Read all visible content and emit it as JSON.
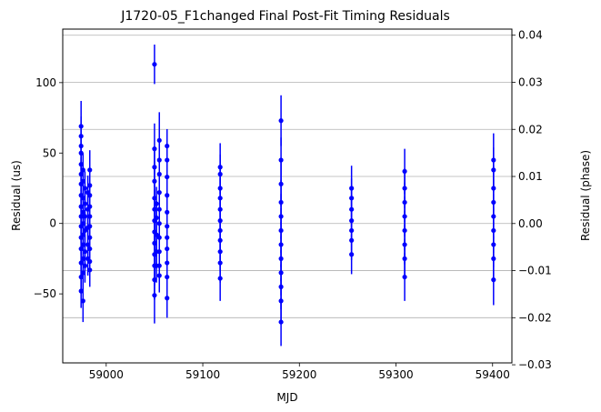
{
  "chart_data": {
    "type": "scatter",
    "title": "J1720-05_F1changed Final Post-Fit Timing Residuals",
    "xlabel": "MJD",
    "ylabel": "Residual (us)",
    "ylabel_right": "Residual (phase)",
    "xlim": [
      58955,
      59420
    ],
    "ylim": [
      -99,
      138
    ],
    "ylim_right": [
      -0.0296,
      0.0413
    ],
    "x_ticks": [
      59000,
      59100,
      59200,
      59300,
      59400
    ],
    "y_ticks": [
      -50,
      0,
      50,
      100
    ],
    "y_ticks_right": [
      -0.03,
      -0.02,
      -0.01,
      0.0,
      0.01,
      0.02,
      0.03,
      0.04
    ],
    "x_tick_labels": [
      "59000",
      "59100",
      "59200",
      "59300",
      "59400"
    ],
    "y_tick_labels": [
      "−50",
      "0",
      "50",
      "100"
    ],
    "y_tick_labels_right": [
      "−0.03",
      "−0.02",
      "−0.01",
      "0.00",
      "0.01",
      "0.02",
      "0.03",
      "0.04"
    ],
    "grid": "horizontal lines at right-axis ticks",
    "legend": "none",
    "marker_color": "#0000ff",
    "grid_color": "#b0b0b0",
    "series": [
      {
        "points": [
          {
            "x": 58974,
            "y": 69,
            "err": 18
          },
          {
            "x": 58974,
            "y": 62,
            "err": 14
          },
          {
            "x": 58974,
            "y": 55,
            "err": 12
          },
          {
            "x": 58974,
            "y": 50,
            "err": 12
          },
          {
            "x": 58974,
            "y": 42,
            "err": 12
          },
          {
            "x": 58974,
            "y": 35,
            "err": 12
          },
          {
            "x": 58974,
            "y": 28,
            "err": 12
          },
          {
            "x": 58974,
            "y": 20,
            "err": 12
          },
          {
            "x": 58974,
            "y": 12,
            "err": 12
          },
          {
            "x": 58974,
            "y": 5,
            "err": 12
          },
          {
            "x": 58974,
            "y": -2,
            "err": 12
          },
          {
            "x": 58974,
            "y": -10,
            "err": 12
          },
          {
            "x": 58974,
            "y": -18,
            "err": 12
          },
          {
            "x": 58974,
            "y": -28,
            "err": 12
          },
          {
            "x": 58974,
            "y": -38,
            "err": 12
          },
          {
            "x": 58974,
            "y": -48,
            "err": 12
          },
          {
            "x": 58976,
            "y": 38,
            "err": 12
          },
          {
            "x": 58976,
            "y": 30,
            "err": 12
          },
          {
            "x": 58976,
            "y": 18,
            "err": 12
          },
          {
            "x": 58976,
            "y": 8,
            "err": 12
          },
          {
            "x": 58976,
            "y": 0,
            "err": 12
          },
          {
            "x": 58976,
            "y": -8,
            "err": 12
          },
          {
            "x": 58976,
            "y": -15,
            "err": 12
          },
          {
            "x": 58976,
            "y": -25,
            "err": 12
          },
          {
            "x": 58976,
            "y": -35,
            "err": 12
          },
          {
            "x": 58976,
            "y": -55,
            "err": 15
          },
          {
            "x": 58978,
            "y": 25,
            "err": 12
          },
          {
            "x": 58978,
            "y": 14,
            "err": 12
          },
          {
            "x": 58978,
            "y": 5,
            "err": 12
          },
          {
            "x": 58978,
            "y": -5,
            "err": 12
          },
          {
            "x": 58978,
            "y": -20,
            "err": 12
          },
          {
            "x": 58978,
            "y": -30,
            "err": 12
          },
          {
            "x": 58981,
            "y": 22,
            "err": 12
          },
          {
            "x": 58981,
            "y": 10,
            "err": 12
          },
          {
            "x": 58981,
            "y": -3,
            "err": 12
          },
          {
            "x": 58981,
            "y": -15,
            "err": 12
          },
          {
            "x": 58981,
            "y": -25,
            "err": 12
          },
          {
            "x": 58983,
            "y": 38,
            "err": 14
          },
          {
            "x": 58983,
            "y": 27,
            "err": 12
          },
          {
            "x": 58983,
            "y": 20,
            "err": 12
          },
          {
            "x": 58983,
            "y": 12,
            "err": 12
          },
          {
            "x": 58983,
            "y": 5,
            "err": 12
          },
          {
            "x": 58983,
            "y": -2,
            "err": 12
          },
          {
            "x": 58983,
            "y": -10,
            "err": 12
          },
          {
            "x": 58983,
            "y": -18,
            "err": 12
          },
          {
            "x": 58983,
            "y": -27,
            "err": 12
          },
          {
            "x": 58983,
            "y": -33,
            "err": 12
          },
          {
            "x": 59050,
            "y": 113,
            "err": 14
          },
          {
            "x": 59050,
            "y": 53,
            "err": 18
          },
          {
            "x": 59050,
            "y": 40,
            "err": 14
          },
          {
            "x": 59050,
            "y": 30,
            "err": 14
          },
          {
            "x": 59050,
            "y": 18,
            "err": 14
          },
          {
            "x": 59050,
            "y": 10,
            "err": 14
          },
          {
            "x": 59050,
            "y": 2,
            "err": 14
          },
          {
            "x": 59050,
            "y": -6,
            "err": 14
          },
          {
            "x": 59050,
            "y": -14,
            "err": 14
          },
          {
            "x": 59050,
            "y": -22,
            "err": 14
          },
          {
            "x": 59050,
            "y": -30,
            "err": 14
          },
          {
            "x": 59050,
            "y": -40,
            "err": 14
          },
          {
            "x": 59050,
            "y": -51,
            "err": 20
          },
          {
            "x": 59052,
            "y": 14,
            "err": 12
          },
          {
            "x": 59052,
            "y": 4,
            "err": 12
          },
          {
            "x": 59052,
            "y": -8,
            "err": 12
          },
          {
            "x": 59052,
            "y": -20,
            "err": 12
          },
          {
            "x": 59052,
            "y": -30,
            "err": 12
          },
          {
            "x": 59055,
            "y": 59,
            "err": 20
          },
          {
            "x": 59055,
            "y": 45,
            "err": 14
          },
          {
            "x": 59055,
            "y": 35,
            "err": 12
          },
          {
            "x": 59055,
            "y": 22,
            "err": 12
          },
          {
            "x": 59055,
            "y": 10,
            "err": 12
          },
          {
            "x": 59055,
            "y": 0,
            "err": 12
          },
          {
            "x": 59055,
            "y": -10,
            "err": 12
          },
          {
            "x": 59055,
            "y": -20,
            "err": 12
          },
          {
            "x": 59055,
            "y": -30,
            "err": 12
          },
          {
            "x": 59055,
            "y": -37,
            "err": 12
          },
          {
            "x": 59063,
            "y": 55,
            "err": 12
          },
          {
            "x": 59063,
            "y": 45,
            "err": 12
          },
          {
            "x": 59063,
            "y": 33,
            "err": 12
          },
          {
            "x": 59063,
            "y": 20,
            "err": 12
          },
          {
            "x": 59063,
            "y": 8,
            "err": 12
          },
          {
            "x": 59063,
            "y": -2,
            "err": 12
          },
          {
            "x": 59063,
            "y": -10,
            "err": 12
          },
          {
            "x": 59063,
            "y": -18,
            "err": 12
          },
          {
            "x": 59063,
            "y": -28,
            "err": 12
          },
          {
            "x": 59063,
            "y": -38,
            "err": 12
          },
          {
            "x": 59063,
            "y": -53,
            "err": 14
          },
          {
            "x": 59118,
            "y": 40,
            "err": 17
          },
          {
            "x": 59118,
            "y": 35,
            "err": 14
          },
          {
            "x": 59118,
            "y": 25,
            "err": 14
          },
          {
            "x": 59118,
            "y": 18,
            "err": 14
          },
          {
            "x": 59118,
            "y": 10,
            "err": 14
          },
          {
            "x": 59118,
            "y": 2,
            "err": 14
          },
          {
            "x": 59118,
            "y": -5,
            "err": 14
          },
          {
            "x": 59118,
            "y": -12,
            "err": 14
          },
          {
            "x": 59118,
            "y": -20,
            "err": 14
          },
          {
            "x": 59118,
            "y": -28,
            "err": 14
          },
          {
            "x": 59118,
            "y": -39,
            "err": 16
          },
          {
            "x": 59181,
            "y": 73,
            "err": 18
          },
          {
            "x": 59181,
            "y": 45,
            "err": 16
          },
          {
            "x": 59181,
            "y": 28,
            "err": 16
          },
          {
            "x": 59181,
            "y": 15,
            "err": 16
          },
          {
            "x": 59181,
            "y": 5,
            "err": 16
          },
          {
            "x": 59181,
            "y": -5,
            "err": 16
          },
          {
            "x": 59181,
            "y": -15,
            "err": 16
          },
          {
            "x": 59181,
            "y": -25,
            "err": 16
          },
          {
            "x": 59181,
            "y": -35,
            "err": 16
          },
          {
            "x": 59181,
            "y": -45,
            "err": 16
          },
          {
            "x": 59181,
            "y": -55,
            "err": 16
          },
          {
            "x": 59181,
            "y": -70,
            "err": 17
          },
          {
            "x": 59254,
            "y": 25,
            "err": 16
          },
          {
            "x": 59254,
            "y": 18,
            "err": 14
          },
          {
            "x": 59254,
            "y": 10,
            "err": 14
          },
          {
            "x": 59254,
            "y": 2,
            "err": 14
          },
          {
            "x": 59254,
            "y": -5,
            "err": 14
          },
          {
            "x": 59254,
            "y": -12,
            "err": 14
          },
          {
            "x": 59254,
            "y": -22,
            "err": 14
          },
          {
            "x": 59309,
            "y": 37,
            "err": 16
          },
          {
            "x": 59309,
            "y": 25,
            "err": 14
          },
          {
            "x": 59309,
            "y": 15,
            "err": 14
          },
          {
            "x": 59309,
            "y": 5,
            "err": 14
          },
          {
            "x": 59309,
            "y": -5,
            "err": 14
          },
          {
            "x": 59309,
            "y": -15,
            "err": 14
          },
          {
            "x": 59309,
            "y": -25,
            "err": 14
          },
          {
            "x": 59309,
            "y": -38,
            "err": 17
          },
          {
            "x": 59401,
            "y": 45,
            "err": 19
          },
          {
            "x": 59401,
            "y": 38,
            "err": 16
          },
          {
            "x": 59401,
            "y": 25,
            "err": 16
          },
          {
            "x": 59401,
            "y": 15,
            "err": 16
          },
          {
            "x": 59401,
            "y": 5,
            "err": 16
          },
          {
            "x": 59401,
            "y": -5,
            "err": 16
          },
          {
            "x": 59401,
            "y": -15,
            "err": 16
          },
          {
            "x": 59401,
            "y": -25,
            "err": 16
          },
          {
            "x": 59401,
            "y": -40,
            "err": 18
          }
        ]
      }
    ]
  }
}
